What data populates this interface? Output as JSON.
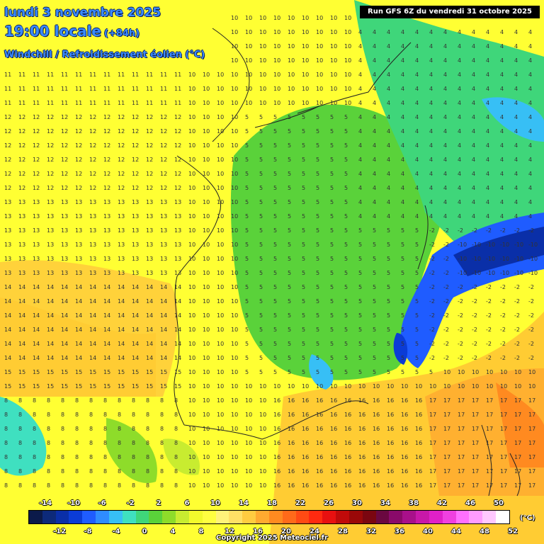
{
  "header": {
    "date": "lundi 3 novembre 2025",
    "time": "19:00 locale",
    "lead": "(+84h)",
    "variable": "Windchill / Refroidissement éolien (°C)",
    "run": "Run GFS 6Z du vendredi 31 octobre 2025"
  },
  "legend": {
    "unit": "(°C)",
    "top_labels": [
      "-14",
      "-10",
      "-6",
      "-2",
      "2",
      "6",
      "10",
      "14",
      "18",
      "22",
      "26",
      "30",
      "34",
      "38",
      "42",
      "46",
      "50"
    ],
    "bottom_labels": [
      "-12",
      "-8",
      "-4",
      "0",
      "4",
      "8",
      "12",
      "16",
      "20",
      "24",
      "28",
      "32",
      "36",
      "40",
      "44",
      "48",
      "52"
    ],
    "colors": [
      "#0b1a4a",
      "#0d2a7a",
      "#0a2fa8",
      "#0b3cd6",
      "#1f5cff",
      "#2f8cff",
      "#37bff5",
      "#3fe0c0",
      "#3fd67a",
      "#5ad23a",
      "#8edc2a",
      "#c8ec30",
      "#f2fa2c",
      "#ffff40",
      "#fff27a",
      "#ffe066",
      "#ffcc40",
      "#ffaa30",
      "#ff8a20",
      "#ff6a1a",
      "#ff4a14",
      "#ff2a10",
      "#e81010",
      "#c00a0a",
      "#9a0808",
      "#7a0610",
      "#6a0840",
      "#8a0a6a",
      "#a8108a",
      "#c818a8",
      "#e020c8",
      "#f040e0",
      "#ff70ff",
      "#ff9cff",
      "#ffc8ff",
      "#ffffff"
    ]
  },
  "copyright": "Copyright 2025 Meteociel.fr"
}
